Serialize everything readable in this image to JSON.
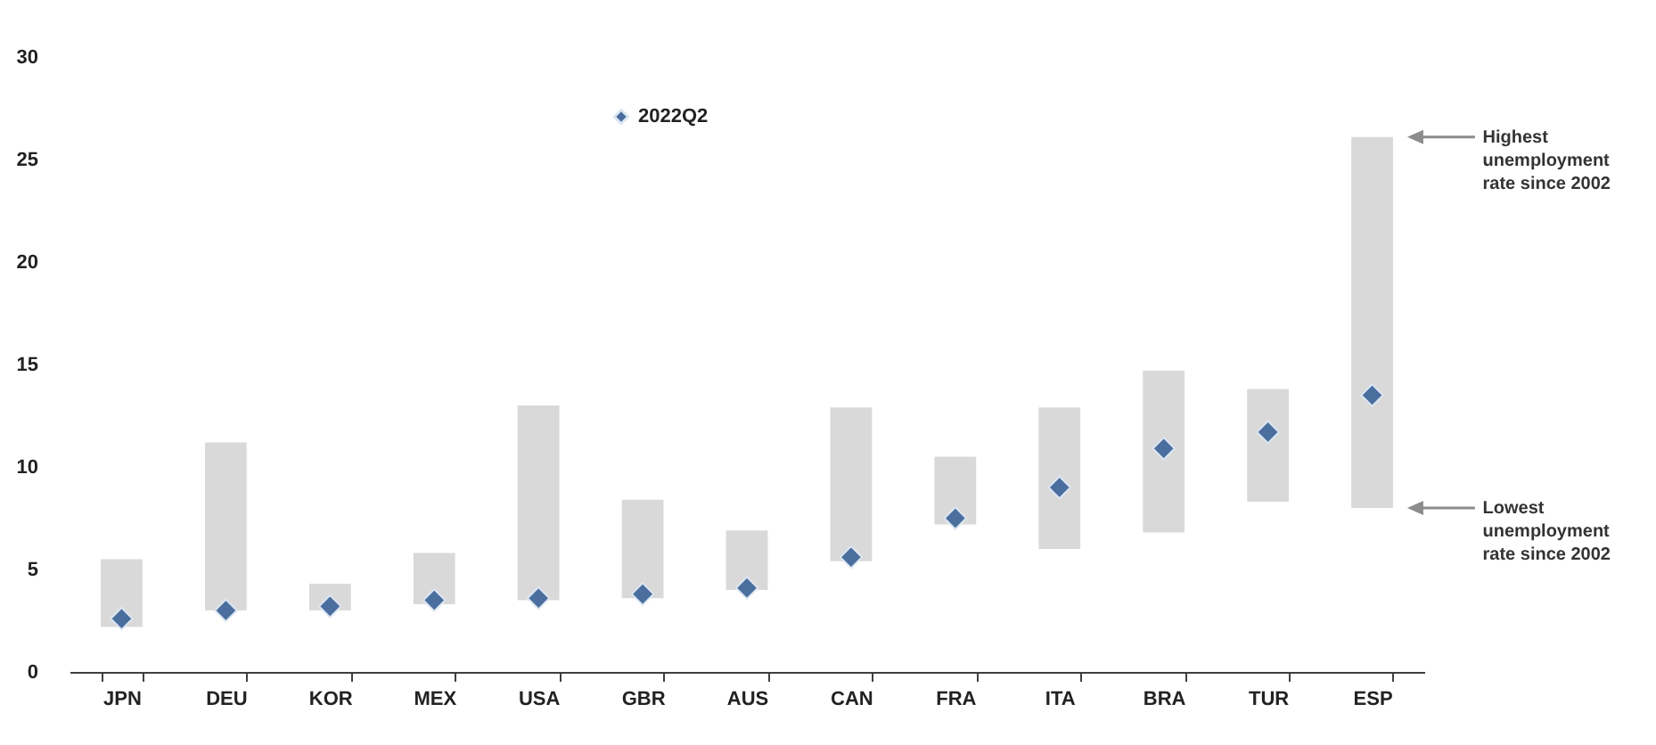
{
  "chart_data": {
    "type": "bar",
    "categories": [
      "JPN",
      "DEU",
      "KOR",
      "MEX",
      "USA",
      "GBR",
      "AUS",
      "CAN",
      "FRA",
      "ITA",
      "BRA",
      "TUR",
      "ESP"
    ],
    "series": [
      {
        "type": "bar",
        "color": "#d9d9d9",
        "base": [
          2.2,
          3.0,
          3.0,
          3.3,
          3.5,
          3.6,
          4.0,
          5.4,
          7.2,
          6.0,
          6.8,
          8.3,
          8.0
        ],
        "values": [
          3.3,
          8.2,
          1.3,
          2.5,
          9.5,
          4.8,
          2.9,
          7.5,
          3.3,
          6.9,
          7.9,
          5.5,
          18.1
        ]
      },
      {
        "type": "scatter",
        "name": "2022Q2",
        "color": "#4a6e9e",
        "values": [
          2.6,
          3.0,
          3.2,
          3.5,
          3.6,
          3.8,
          4.1,
          5.6,
          7.5,
          9.0,
          10.9,
          11.7,
          13.5
        ]
      }
    ],
    "ylim": [
      0,
      30
    ],
    "yticks": [
      0,
      5,
      10,
      15,
      20,
      25,
      30
    ],
    "grid": false,
    "legend": "top",
    "marker": "diamond",
    "annotations": [
      "Highest unemployment rate since 2002",
      "Lowest unemployment rate since 2002"
    ]
  }
}
